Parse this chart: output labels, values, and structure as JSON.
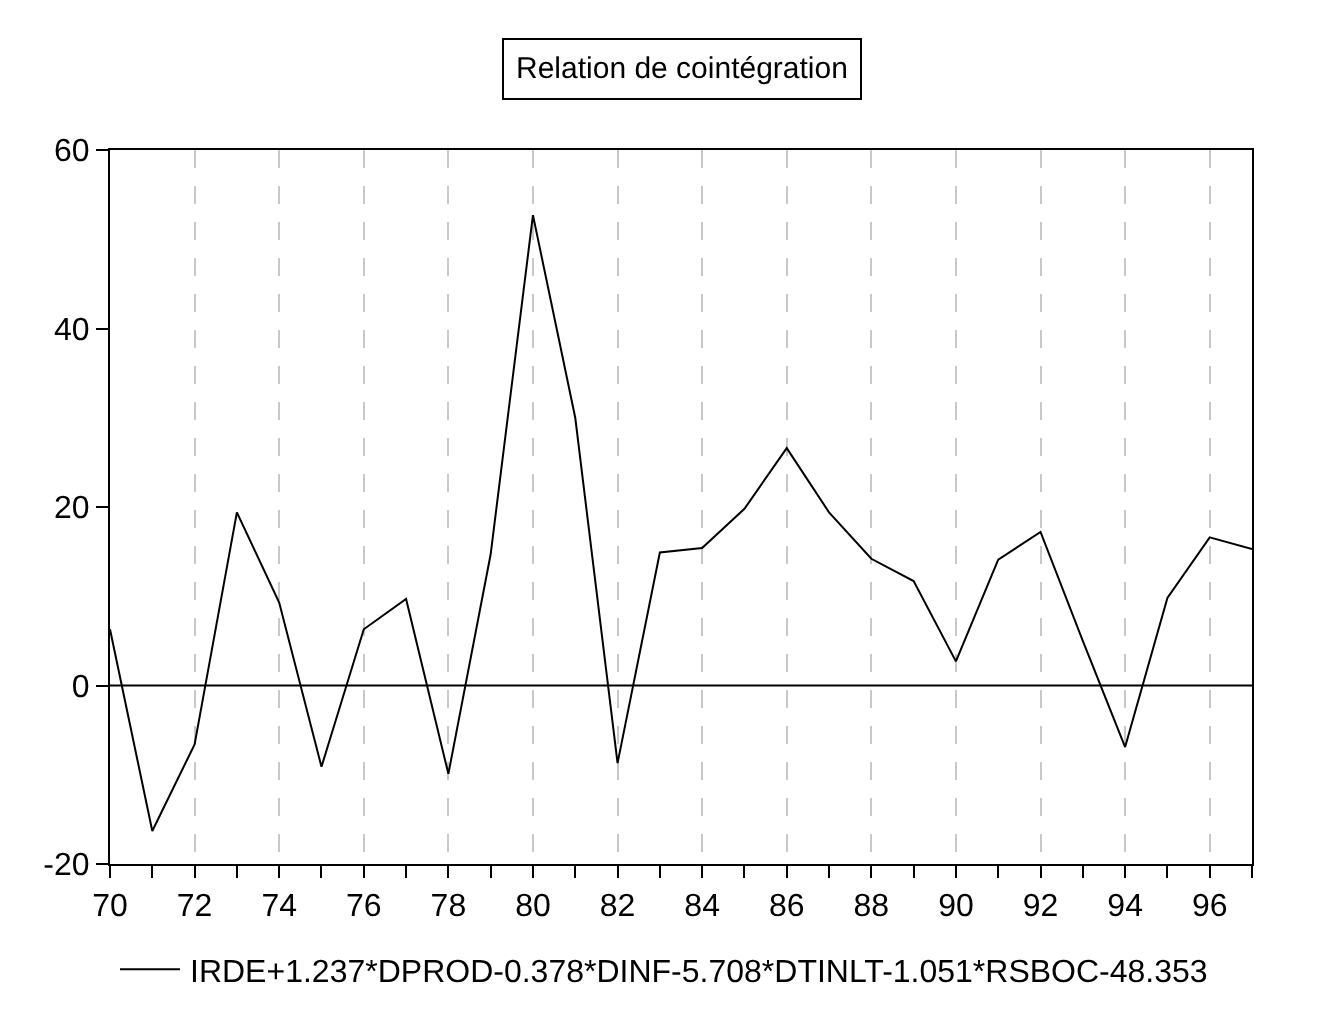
{
  "chart_data": {
    "type": "line",
    "title": "Relation de cointégration",
    "x": [
      70,
      71,
      72,
      73,
      74,
      75,
      76,
      77,
      78,
      79,
      80,
      81,
      82,
      83,
      84,
      85,
      86,
      87,
      88,
      89,
      90,
      91,
      92,
      93,
      94,
      95,
      96,
      97
    ],
    "series": [
      {
        "name": "IRDE+1.237*DPROD-0.378*DINF-5.708*DTINLT-1.051*RSBOC-48.353",
        "color": "#000000",
        "values": [
          6.3,
          -16.3,
          -6.6,
          19.4,
          9.3,
          -9.1,
          6.3,
          9.7,
          -9.9,
          14.7,
          52.7,
          30,
          -8.7,
          14.9,
          15.4,
          19.8,
          26.6,
          19.4,
          14.2,
          11.7,
          2.7,
          14.1,
          17.2,
          5.0,
          -6.9,
          9.8,
          16.6,
          15.3
        ]
      }
    ],
    "xlim": [
      70,
      97
    ],
    "xticks": [
      70,
      72,
      74,
      76,
      78,
      80,
      82,
      84,
      86,
      88,
      90,
      92,
      94,
      96
    ],
    "ylim": [
      -20,
      60
    ],
    "yticks": [
      -20,
      0,
      20,
      40,
      60
    ],
    "ref_lines": [
      {
        "axis": "y",
        "value": 0,
        "color": "#000000"
      }
    ],
    "grid": "x",
    "legend": "bottom",
    "line_style": "solid",
    "marker": "none"
  }
}
